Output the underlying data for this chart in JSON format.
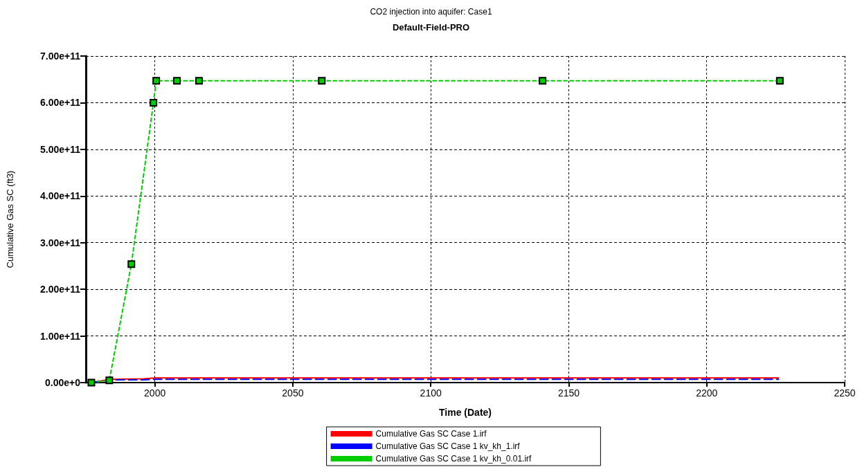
{
  "chart_data": {
    "type": "line",
    "title": "CO2 injection into aquifer: Case1",
    "subtitle": "Default-Field-PRO",
    "xlabel": "Time (Date)",
    "ylabel": "Cumulative Gas SC (ft3)",
    "xlim": [
      1975,
      2250
    ],
    "xticks": [
      2000,
      2050,
      2100,
      2150,
      2200,
      2250
    ],
    "ylim": [
      0,
      700000000000
    ],
    "yticks": [
      {
        "value": 0,
        "label": "0.00e+0"
      },
      {
        "value": 100000000000,
        "label": "1.00e+11"
      },
      {
        "value": 200000000000,
        "label": "2.00e+11"
      },
      {
        "value": 300000000000,
        "label": "3.00e+11"
      },
      {
        "value": 400000000000,
        "label": "4.00e+11"
      },
      {
        "value": 500000000000,
        "label": "5.00e+11"
      },
      {
        "value": 600000000000,
        "label": "6.00e+11"
      },
      {
        "value": 700000000000,
        "label": "7.00e+11"
      }
    ],
    "grid": true,
    "legend": "bottom",
    "series": [
      {
        "name": "Cumulative Gas SC Case 1.irf",
        "color": "#ff0000",
        "line_style": "solid",
        "marker": "none",
        "x": [
          1977,
          1984,
          1996,
          2000,
          2226
        ],
        "values": [
          0,
          7000000000,
          8000000000,
          10000000000,
          10000000000
        ]
      },
      {
        "name": "Cumulative Gas SC Case 1 kv_kh_1.irf",
        "color": "#0000ff",
        "line_style": "dashed",
        "marker": "none",
        "x": [
          1977,
          1984,
          1996,
          2000,
          2226
        ],
        "values": [
          0,
          6000000000,
          6000000000,
          7000000000,
          7000000000
        ]
      },
      {
        "name": "Cumulative Gas SC Case 1 kv_kh_0.01.irf",
        "color": "#00cc00",
        "line_style": "dotted",
        "marker": "square",
        "x": [
          1977,
          1983.5,
          1991.5,
          1999.5,
          2000.5,
          2008,
          2016,
          2060.5,
          2140.5,
          2226.5
        ],
        "values": [
          0,
          5000000000,
          254000000000,
          600000000000,
          647000000000,
          647000000000,
          647000000000,
          647000000000,
          647000000000,
          647000000000
        ]
      }
    ]
  }
}
